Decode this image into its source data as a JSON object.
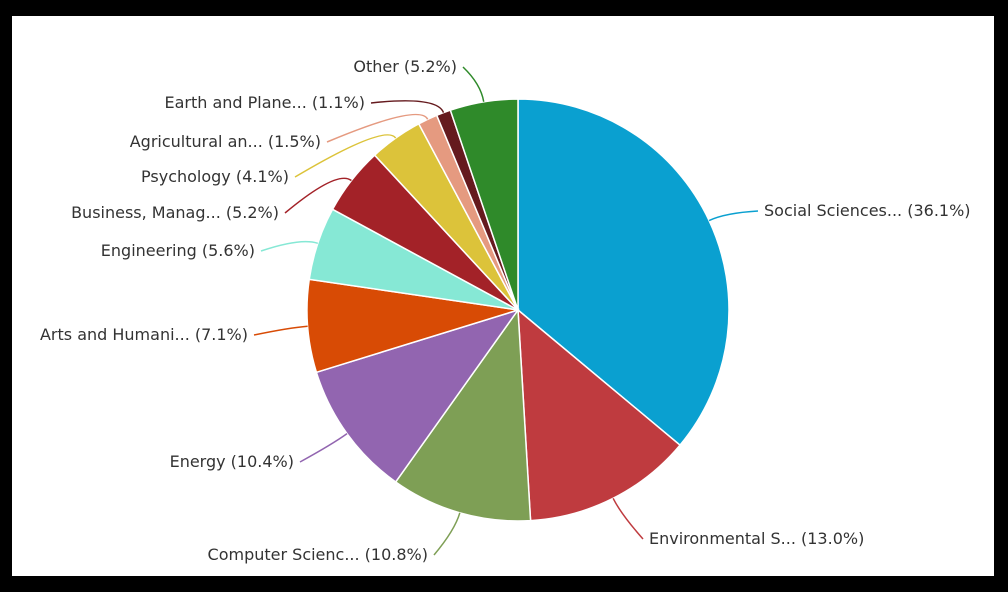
{
  "chart_data": {
    "type": "pie",
    "start_angle_deg": 0,
    "direction": "clockwise",
    "slices": [
      {
        "label": "Social Sciences... (36.1%)",
        "value": 36.1,
        "color": "#0aa0d0"
      },
      {
        "label": "Environmental S... (13.0%)",
        "value": 13.0,
        "color": "#bf3b3f"
      },
      {
        "label": "Computer Scienc... (10.8%)",
        "value": 10.8,
        "color": "#7e9f55"
      },
      {
        "label": "Energy (10.4%)",
        "value": 10.4,
        "color": "#9265b0"
      },
      {
        "label": "Arts and Humani... (7.1%)",
        "value": 7.1,
        "color": "#d84b05"
      },
      {
        "label": "Engineering (5.6%)",
        "value": 5.6,
        "color": "#86e8d5"
      },
      {
        "label": "Business, Manag... (5.2%)",
        "value": 5.2,
        "color": "#a32228"
      },
      {
        "label": "Psychology (4.1%)",
        "value": 4.1,
        "color": "#dcc33a"
      },
      {
        "label": "Agricultural an... (1.5%)",
        "value": 1.5,
        "color": "#e59a80"
      },
      {
        "label": "Earth and Plane... (1.1%)",
        "value": 1.1,
        "color": "#651a1e"
      },
      {
        "label": "Other (5.2%)",
        "value": 5.2,
        "color": "#2f8a2a"
      }
    ]
  }
}
